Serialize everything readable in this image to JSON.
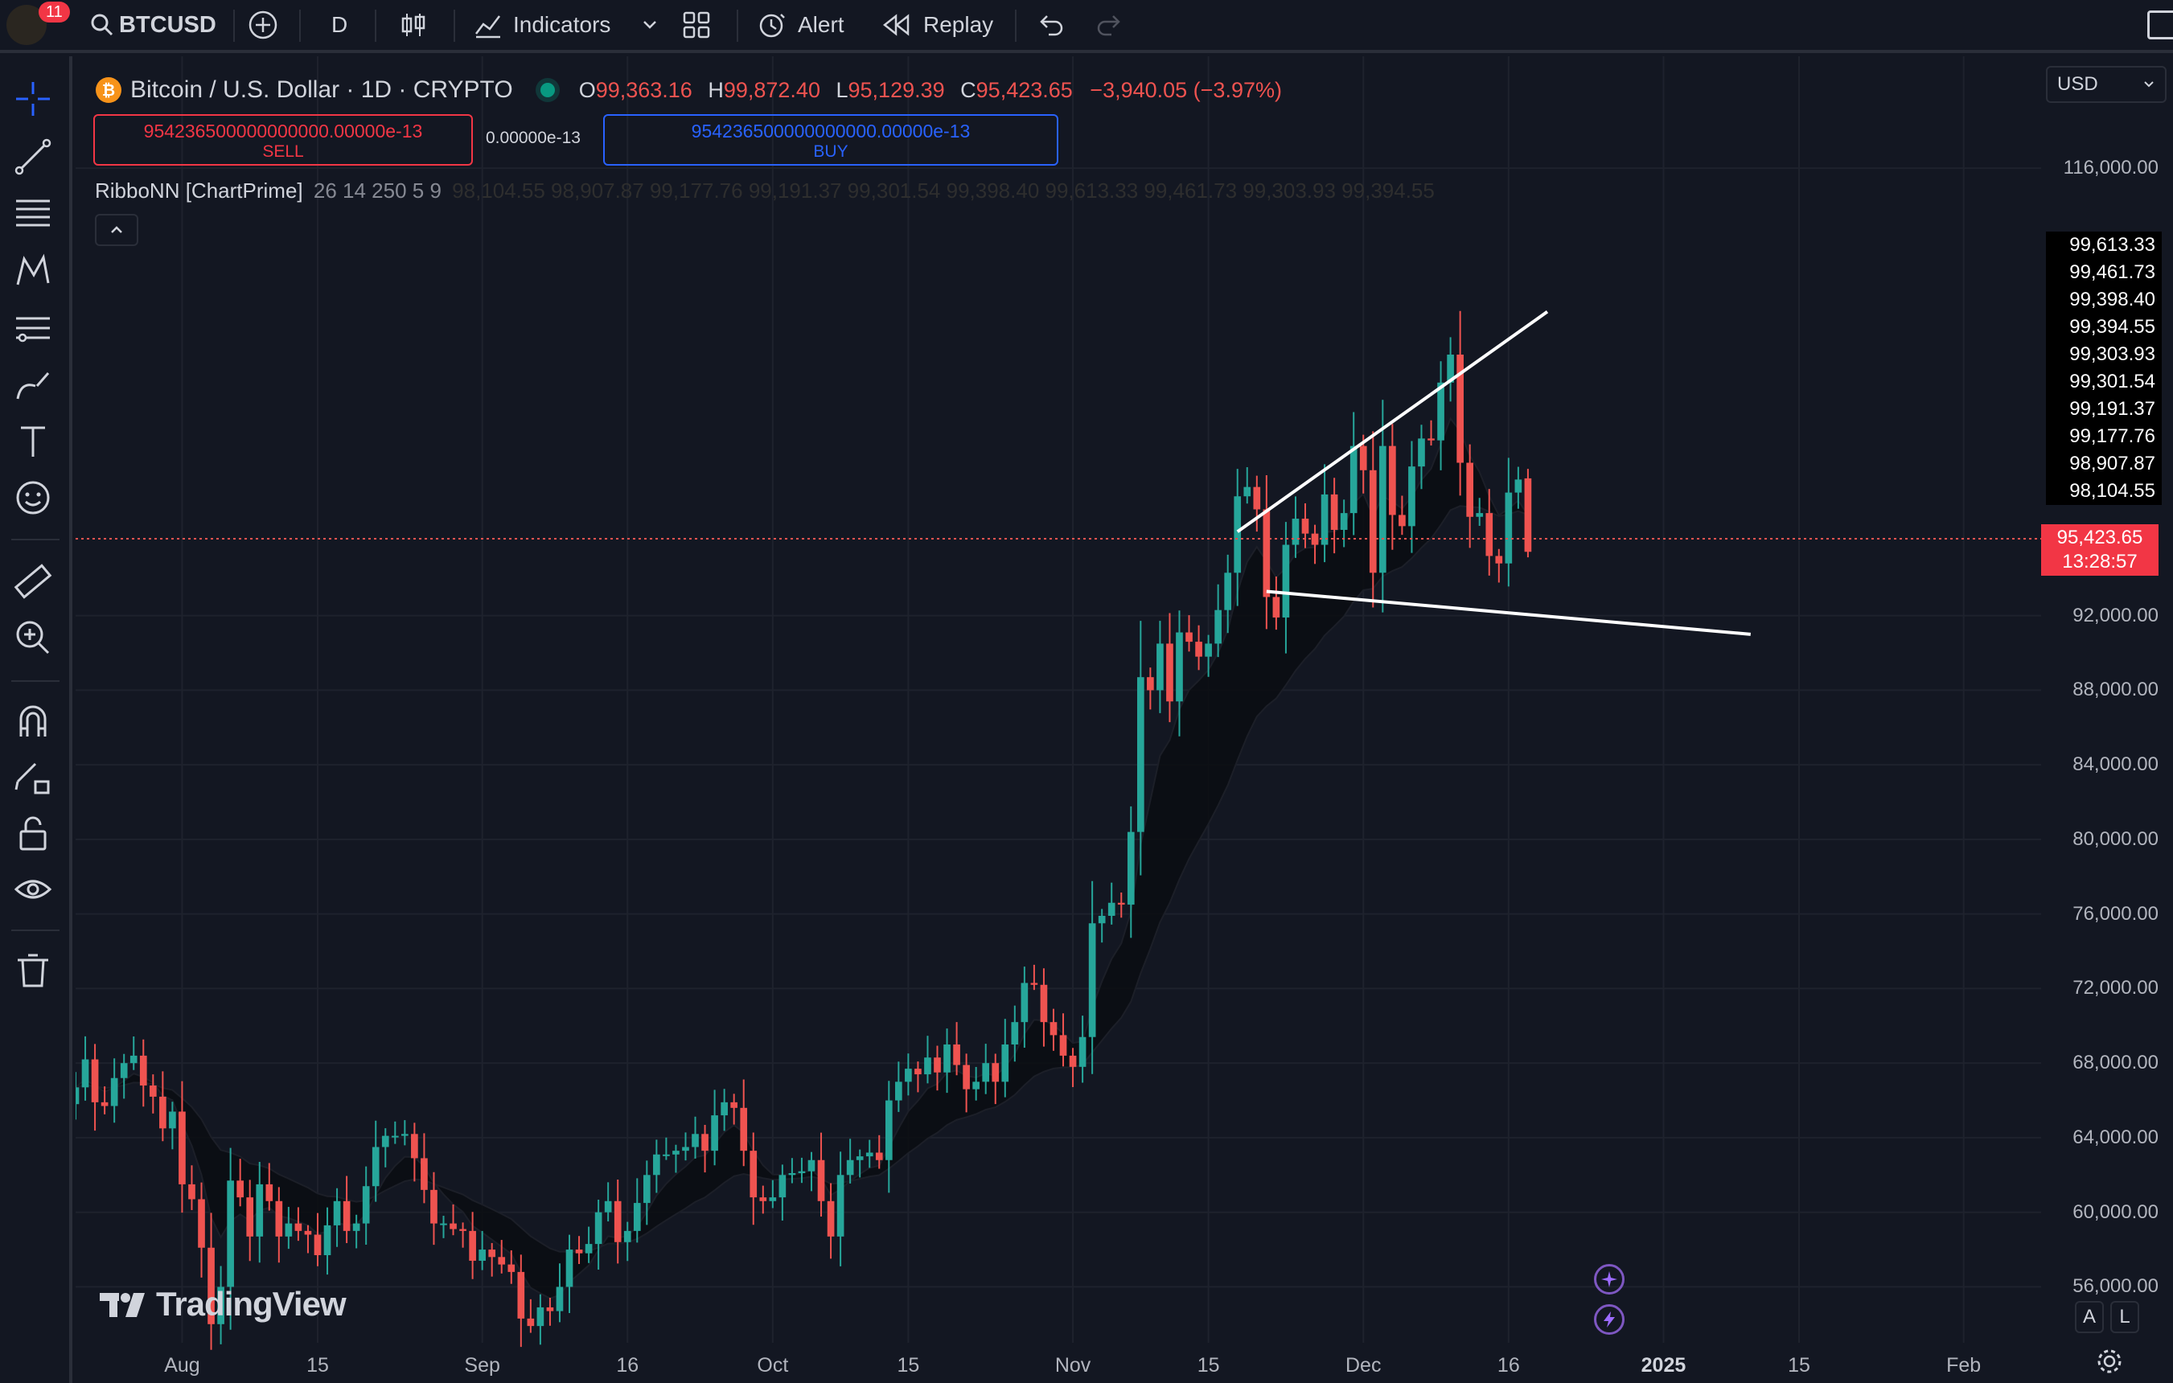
{
  "header": {
    "notification_count": "11",
    "symbol": "BTCUSD",
    "interval": "D",
    "indicators_label": "Indicators",
    "alert_label": "Alert",
    "replay_label": "Replay"
  },
  "legend": {
    "title": "Bitcoin / U.S. Dollar · 1D · CRYPTO",
    "open_key": "O",
    "open": "99,363.16",
    "high_key": "H",
    "high": "99,872.40",
    "low_key": "L",
    "low": "95,129.39",
    "close_key": "C",
    "close": "95,423.65",
    "change": "−3,940.05 (−3.97%)"
  },
  "trade": {
    "sell_price": "954236500000000000.00000e-13",
    "sell_label": "SELL",
    "spread": "0.00000e-13",
    "buy_price": "954236500000000000.00000e-13",
    "buy_label": "BUY"
  },
  "indicator": {
    "name": "RibboNN [ChartPrime]",
    "params": "26 14 250 5 9",
    "values": [
      "98,104.55",
      "98,907.87",
      "99,177.76",
      "99,191.37",
      "99,301.54",
      "99,398.40",
      "99,613.33",
      "99,461.73",
      "99,303.93",
      "99,394.55"
    ]
  },
  "currency": "USD",
  "watermark": "TradingView",
  "price_scale": {
    "ticks": [
      "116,000.00",
      "92,000.00",
      "88,000.00",
      "84,000.00",
      "80,000.00",
      "76,000.00",
      "72,000.00",
      "68,000.00",
      "64,000.00",
      "60,000.00",
      "56,000.00"
    ],
    "ribbon_labels": [
      "99,613.33",
      "99,461.73",
      "99,398.40",
      "99,394.55",
      "99,303.93",
      "99,301.54",
      "99,191.37",
      "99,177.76",
      "98,907.87",
      "98,104.55"
    ],
    "current_price": "95,423.65",
    "countdown": "13:28:57"
  },
  "time_scale": [
    "Aug",
    "15",
    "Sep",
    "16",
    "Oct",
    "15",
    "Nov",
    "15",
    "Dec",
    "16",
    "2025",
    "15",
    "Feb"
  ],
  "scale_buttons": {
    "auto": "A",
    "log": "L"
  },
  "colors": {
    "up": "#26a69a",
    "down": "#ef5350",
    "background": "#131722",
    "grid": "#1e222d"
  },
  "chart_data": {
    "type": "candlestick",
    "symbol": "BTCUSD",
    "interval": "1D",
    "y_range": [
      53000,
      122000
    ],
    "x_range": [
      "2024-07-21",
      "2025-02-09"
    ],
    "y_ticks": [
      56000,
      60000,
      64000,
      68000,
      72000,
      76000,
      80000,
      84000,
      88000,
      92000,
      116000
    ],
    "x_ticks": [
      "Aug",
      "15",
      "Sep",
      "16",
      "Oct",
      "15",
      "Nov",
      "15",
      "Dec",
      "16",
      "2025",
      "15",
      "Feb"
    ],
    "first_date": "2024-07-21",
    "closes": [
      66700,
      68200,
      65900,
      65700,
      67200,
      68000,
      68400,
      66800,
      66200,
      64500,
      65400,
      61500,
      60700,
      58100,
      54000,
      56000,
      61700,
      60800,
      58700,
      61500,
      60600,
      58700,
      59400,
      59000,
      58800,
      57700,
      59300,
      60600,
      59000,
      59400,
      61400,
      63500,
      64100,
      64100,
      64200,
      62900,
      61200,
      59400,
      59400,
      59100,
      59000,
      57400,
      58000,
      57600,
      57200,
      56800,
      54300,
      53900,
      54900,
      54700,
      56000,
      58000,
      57800,
      58300,
      60000,
      60600,
      58400,
      59000,
      60500,
      62000,
      63100,
      63100,
      63300,
      63500,
      64200,
      63300,
      65200,
      65900,
      65600,
      63300,
      60800,
      60600,
      60800,
      62000,
      62100,
      62200,
      62800,
      60600,
      58700,
      62000,
      62800,
      63000,
      63200,
      62800,
      66000,
      67000,
      67700,
      67400,
      68300,
      67500,
      69000,
      67900,
      66600,
      67000,
      68000,
      67000,
      69000,
      70200,
      72300,
      72200,
      70200,
      69500,
      68400,
      67800,
      69400,
      75500,
      75900,
      76600,
      76500,
      80400,
      88700,
      88000,
      90500,
      87400,
      91100,
      90600,
      89800,
      90500,
      92300,
      94300,
      98400,
      98900,
      97700,
      93000,
      91900,
      95800,
      97200,
      96400,
      95800,
      98500,
      96600,
      97500,
      101100,
      99800,
      94300,
      101100,
      97400,
      96800,
      100000,
      101500,
      101400,
      104500,
      106000,
      100200,
      97300,
      97500,
      95200,
      94800,
      98600,
      99300,
      95400
    ],
    "current_price": 95423.65,
    "trendlines": [
      {
        "from": [
          "2024-11-18",
          96500
        ],
        "to": [
          "2024-12-20",
          108300
        ]
      },
      {
        "from": [
          "2024-11-21",
          93300
        ],
        "to": [
          "2025-01-10",
          91000
        ]
      }
    ]
  }
}
